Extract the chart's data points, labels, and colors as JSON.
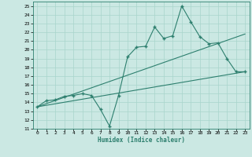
{
  "xlabel": "Humidex (Indice chaleur)",
  "bg_color": "#cbe8e3",
  "line_color": "#2d7f6e",
  "grid_color": "#a8d5cc",
  "xlim": [
    -0.5,
    23.5
  ],
  "ylim": [
    11,
    25.5
  ],
  "xticks": [
    0,
    1,
    2,
    3,
    4,
    5,
    6,
    7,
    8,
    9,
    10,
    11,
    12,
    13,
    14,
    15,
    16,
    17,
    18,
    19,
    20,
    21,
    22,
    23
  ],
  "yticks": [
    11,
    12,
    13,
    14,
    15,
    16,
    17,
    18,
    19,
    20,
    21,
    22,
    23,
    24,
    25
  ],
  "main_x": [
    0,
    1,
    2,
    3,
    4,
    5,
    6,
    7,
    8,
    9,
    10,
    11,
    12,
    13,
    14,
    15,
    16,
    17,
    18,
    19,
    20,
    21,
    22,
    23
  ],
  "main_y": [
    13.5,
    14.2,
    14.3,
    14.7,
    14.8,
    15.0,
    14.8,
    13.2,
    11.3,
    14.8,
    19.2,
    20.3,
    20.4,
    22.6,
    21.3,
    21.6,
    25.0,
    23.2,
    21.5,
    20.7,
    20.8,
    19.0,
    17.5,
    17.5
  ],
  "trend1_x": [
    0,
    23
  ],
  "trend1_y": [
    13.5,
    21.8
  ],
  "trend2_x": [
    0,
    23
  ],
  "trend2_y": [
    13.5,
    17.5
  ]
}
